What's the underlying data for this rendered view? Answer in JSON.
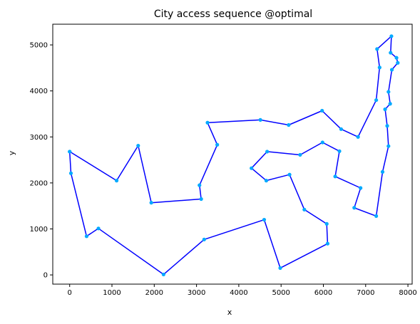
{
  "chart_data": {
    "type": "line",
    "title": "City access sequence @optimal",
    "xlabel": "x",
    "ylabel": "y",
    "xlim": [
      -400,
      8100
    ],
    "ylim": [
      -200,
      5450
    ],
    "xticks": [
      0,
      1000,
      2000,
      3000,
      4000,
      5000,
      6000,
      7000,
      8000
    ],
    "yticks": [
      0,
      1000,
      2000,
      3000,
      4000,
      5000
    ],
    "grid": false,
    "line_color": "#0000ff",
    "marker_color": "#00aaff",
    "series": [
      {
        "points": [
          [
            0,
            2680
          ],
          [
            30,
            2210
          ],
          [
            400,
            840
          ],
          [
            680,
            1010
          ],
          [
            2220,
            10
          ],
          [
            3180,
            770
          ],
          [
            4600,
            1200
          ],
          [
            4980,
            150
          ],
          [
            6100,
            680
          ],
          [
            6080,
            1110
          ],
          [
            5550,
            1420
          ],
          [
            5200,
            2180
          ],
          [
            4650,
            2050
          ],
          [
            4300,
            2320
          ],
          [
            4670,
            2680
          ],
          [
            5450,
            2610
          ],
          [
            5980,
            2880
          ],
          [
            6380,
            2690
          ],
          [
            6280,
            2140
          ],
          [
            6880,
            1890
          ],
          [
            6730,
            1460
          ],
          [
            7250,
            1280
          ],
          [
            7400,
            2240
          ],
          [
            7540,
            2800
          ],
          [
            7510,
            3240
          ],
          [
            7460,
            3600
          ],
          [
            7580,
            3720
          ],
          [
            7540,
            3980
          ],
          [
            7620,
            4460
          ],
          [
            7760,
            4610
          ],
          [
            7730,
            4720
          ],
          [
            7590,
            4830
          ],
          [
            7610,
            5190
          ],
          [
            7270,
            4910
          ],
          [
            7330,
            4510
          ],
          [
            7250,
            3800
          ],
          [
            6820,
            3000
          ],
          [
            6420,
            3170
          ],
          [
            5970,
            3570
          ],
          [
            5180,
            3260
          ],
          [
            4510,
            3370
          ],
          [
            3260,
            3310
          ],
          [
            3490,
            2830
          ],
          [
            3070,
            1950
          ],
          [
            3110,
            1650
          ],
          [
            1930,
            1570
          ],
          [
            1620,
            2810
          ],
          [
            1110,
            2050
          ],
          [
            0,
            2680
          ]
        ]
      }
    ]
  }
}
